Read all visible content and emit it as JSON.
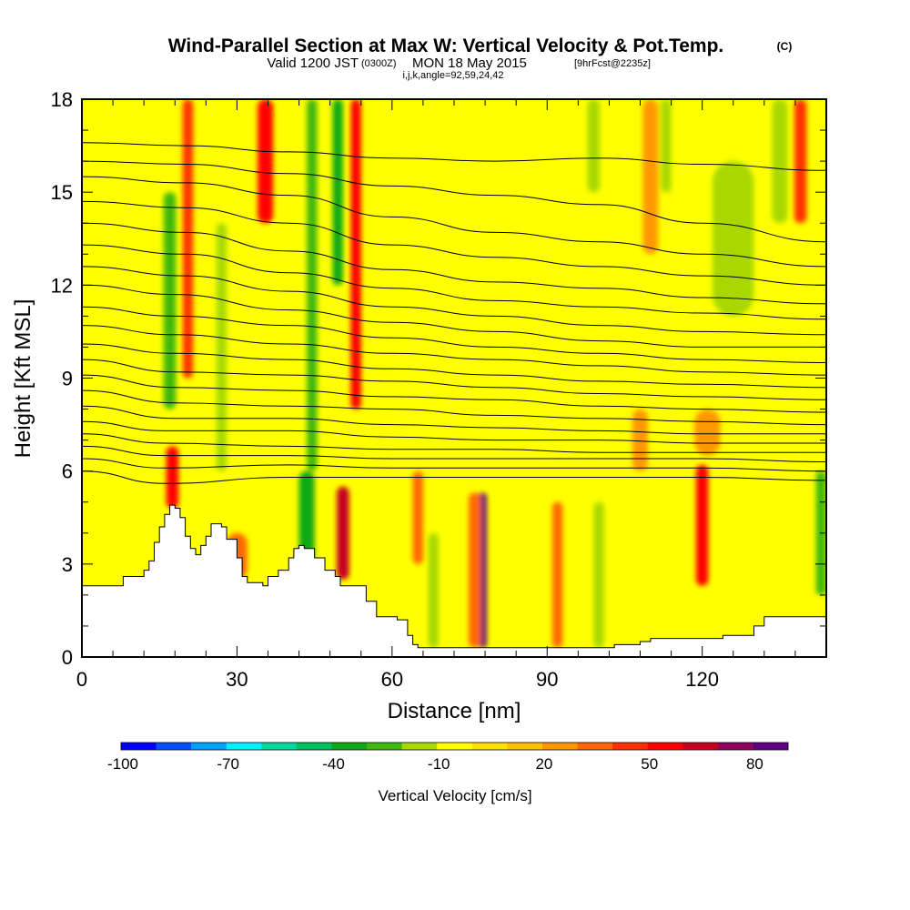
{
  "chart_data": {
    "type": "heatmap",
    "title": "Wind-Parallel Section at Max W: Vertical Velocity & Pot.Temp.",
    "title_mark": "(C)",
    "subtitle_main": "Valid 1200 JST",
    "subtitle_utc": "(0300Z)",
    "subtitle_date": "MON 18 May 2015",
    "subtitle_fcst": "[9hrFcst@2235z]",
    "subtitle_grid": "i,j,k,angle=92,59,24,42",
    "xlabel": "Distance [nm]",
    "ylabel": "Height [Kft MSL]",
    "xlim": [
      0,
      144
    ],
    "ylim": [
      0,
      18
    ],
    "x_ticks": [
      "0",
      "30",
      "60",
      "90",
      "120"
    ],
    "x_tick_values": [
      0,
      30,
      60,
      90,
      120
    ],
    "y_ticks": [
      "0",
      "3",
      "6",
      "9",
      "12",
      "15",
      "18"
    ],
    "y_tick_values": [
      0,
      3,
      6,
      9,
      12,
      15,
      18
    ],
    "colorbar": {
      "label": "Vertical Velocity [cm/s]",
      "bounds": [
        -100,
        90
      ],
      "step": 10,
      "tick_labels": [
        "-100",
        "-70",
        "-40",
        "-10",
        "20",
        "50",
        "80"
      ],
      "tick_values": [
        -100,
        -70,
        -40,
        -10,
        20,
        50,
        80
      ],
      "colors": [
        "#0000ff",
        "#0050ff",
        "#00a0ff",
        "#00f0ff",
        "#00d8a0",
        "#00c060",
        "#10a818",
        "#40b810",
        "#a8d800",
        "#ffff00",
        "#ffe000",
        "#ffc000",
        "#ff9800",
        "#ff6800",
        "#ff3000",
        "#ff0000",
        "#c80020",
        "#900060",
        "#600080"
      ]
    },
    "terrain_kft": [
      [
        0,
        2.3
      ],
      [
        6,
        2.3
      ],
      [
        8,
        2.6
      ],
      [
        12,
        2.8
      ],
      [
        13,
        3.1
      ],
      [
        14,
        3.7
      ],
      [
        15,
        4.2
      ],
      [
        16,
        4.6
      ],
      [
        17,
        4.9
      ],
      [
        18,
        4.8
      ],
      [
        19,
        4.5
      ],
      [
        20,
        3.9
      ],
      [
        21,
        3.5
      ],
      [
        22,
        3.3
      ],
      [
        23,
        3.6
      ],
      [
        24,
        3.9
      ],
      [
        25,
        4.3
      ],
      [
        27,
        4.2
      ],
      [
        28,
        3.8
      ],
      [
        30,
        3.2
      ],
      [
        31,
        2.6
      ],
      [
        32,
        2.4
      ],
      [
        35,
        2.3
      ],
      [
        36,
        2.6
      ],
      [
        38,
        2.8
      ],
      [
        40,
        3.2
      ],
      [
        41,
        3.5
      ],
      [
        42,
        3.6
      ],
      [
        43,
        3.5
      ],
      [
        45,
        3.2
      ],
      [
        47,
        2.8
      ],
      [
        49,
        2.6
      ],
      [
        50,
        2.3
      ],
      [
        53,
        2.3
      ],
      [
        55,
        1.8
      ],
      [
        57,
        1.3
      ],
      [
        59,
        1.3
      ],
      [
        61,
        1.2
      ],
      [
        63,
        0.7
      ],
      [
        64,
        0.4
      ],
      [
        65,
        0.3
      ],
      [
        70,
        0.3
      ],
      [
        80,
        0.3
      ],
      [
        100,
        0.3
      ],
      [
        103,
        0.4
      ],
      [
        108,
        0.5
      ],
      [
        110,
        0.6
      ],
      [
        115,
        0.6
      ],
      [
        124,
        0.7
      ],
      [
        130,
        1.0
      ],
      [
        132,
        1.3
      ],
      [
        144,
        1.3
      ]
    ],
    "potential_temperature_contours": [
      {
        "label": "",
        "points": [
          [
            0,
            16.6
          ],
          [
            20,
            16.5
          ],
          [
            40,
            16.3
          ],
          [
            60,
            16.1
          ],
          [
            80,
            16.0
          ],
          [
            100,
            16.1
          ],
          [
            120,
            15.9
          ],
          [
            144,
            15.7
          ]
        ]
      },
      {
        "label": "",
        "points": [
          [
            0,
            16.0
          ],
          [
            20,
            15.9
          ],
          [
            40,
            15.6
          ],
          [
            60,
            15.2
          ],
          [
            80,
            14.9
          ],
          [
            100,
            14.6
          ],
          [
            120,
            14.0
          ],
          [
            144,
            13.4
          ]
        ]
      },
      {
        "label": "",
        "points": [
          [
            0,
            15.5
          ],
          [
            20,
            15.3
          ],
          [
            40,
            14.9
          ],
          [
            60,
            14.2
          ],
          [
            80,
            13.7
          ],
          [
            100,
            13.4
          ],
          [
            120,
            13.0
          ],
          [
            144,
            12.6
          ]
        ]
      },
      {
        "label": "",
        "points": [
          [
            0,
            14.7
          ],
          [
            20,
            14.5
          ],
          [
            40,
            14.0
          ],
          [
            60,
            13.3
          ],
          [
            80,
            12.9
          ],
          [
            100,
            12.6
          ],
          [
            120,
            12.3
          ],
          [
            144,
            12.0
          ]
        ]
      },
      {
        "label": "",
        "points": [
          [
            0,
            14.0
          ],
          [
            20,
            13.7
          ],
          [
            40,
            13.1
          ],
          [
            60,
            12.5
          ],
          [
            80,
            12.1
          ],
          [
            100,
            11.9
          ],
          [
            120,
            11.6
          ],
          [
            144,
            11.4
          ]
        ]
      },
      {
        "label": "",
        "points": [
          [
            0,
            13.3
          ],
          [
            20,
            13.0
          ],
          [
            40,
            12.4
          ],
          [
            60,
            11.9
          ],
          [
            80,
            11.5
          ],
          [
            100,
            11.3
          ],
          [
            120,
            11.1
          ],
          [
            144,
            10.9
          ]
        ]
      },
      {
        "label": "",
        "points": [
          [
            0,
            12.6
          ],
          [
            20,
            12.3
          ],
          [
            40,
            11.8
          ],
          [
            60,
            11.3
          ],
          [
            80,
            11.0
          ],
          [
            100,
            10.7
          ],
          [
            120,
            10.5
          ],
          [
            144,
            10.4
          ]
        ]
      },
      {
        "label": "",
        "points": [
          [
            0,
            12.0
          ],
          [
            18,
            11.7
          ],
          [
            40,
            11.2
          ],
          [
            60,
            10.8
          ],
          [
            80,
            10.5
          ],
          [
            100,
            10.2
          ],
          [
            120,
            10.0
          ],
          [
            144,
            10.0
          ]
        ]
      },
      {
        "label": "",
        "points": [
          [
            0,
            11.3
          ],
          [
            18,
            11.0
          ],
          [
            40,
            10.7
          ],
          [
            60,
            10.3
          ],
          [
            80,
            10.0
          ],
          [
            100,
            9.8
          ],
          [
            120,
            9.6
          ],
          [
            144,
            9.5
          ]
        ]
      },
      {
        "label": "",
        "points": [
          [
            0,
            10.7
          ],
          [
            18,
            10.4
          ],
          [
            40,
            10.1
          ],
          [
            60,
            9.8
          ],
          [
            80,
            9.6
          ],
          [
            100,
            9.4
          ],
          [
            120,
            9.2
          ],
          [
            144,
            9.1
          ]
        ]
      },
      {
        "label": "",
        "points": [
          [
            0,
            10.1
          ],
          [
            18,
            9.8
          ],
          [
            40,
            9.6
          ],
          [
            60,
            9.3
          ],
          [
            80,
            9.1
          ],
          [
            100,
            8.9
          ],
          [
            120,
            8.8
          ],
          [
            144,
            8.7
          ]
        ]
      },
      {
        "label": "",
        "points": [
          [
            0,
            9.6
          ],
          [
            18,
            9.2
          ],
          [
            40,
            9.1
          ],
          [
            60,
            8.9
          ],
          [
            80,
            8.7
          ],
          [
            100,
            8.5
          ],
          [
            120,
            8.4
          ],
          [
            144,
            8.3
          ]
        ]
      },
      {
        "label": "",
        "points": [
          [
            0,
            9.1
          ],
          [
            18,
            8.7
          ],
          [
            40,
            8.6
          ],
          [
            60,
            8.4
          ],
          [
            80,
            8.3
          ],
          [
            100,
            8.1
          ],
          [
            120,
            8.0
          ],
          [
            144,
            7.9
          ]
        ]
      },
      {
        "label": "",
        "points": [
          [
            0,
            8.6
          ],
          [
            18,
            8.2
          ],
          [
            40,
            8.1
          ],
          [
            60,
            8.0
          ],
          [
            80,
            7.8
          ],
          [
            100,
            7.7
          ],
          [
            120,
            7.6
          ],
          [
            144,
            7.5
          ]
        ]
      },
      {
        "label": "",
        "points": [
          [
            0,
            8.1
          ],
          [
            18,
            7.7
          ],
          [
            40,
            7.7
          ],
          [
            60,
            7.5
          ],
          [
            80,
            7.4
          ],
          [
            100,
            7.3
          ],
          [
            120,
            7.2
          ],
          [
            144,
            7.2
          ]
        ]
      },
      {
        "label": "",
        "points": [
          [
            0,
            7.6
          ],
          [
            16,
            7.3
          ],
          [
            40,
            7.3
          ],
          [
            60,
            7.1
          ],
          [
            80,
            7.0
          ],
          [
            100,
            7.0
          ],
          [
            120,
            6.9
          ],
          [
            144,
            6.9
          ]
        ]
      },
      {
        "label": "",
        "points": [
          [
            0,
            7.2
          ],
          [
            16,
            6.9
          ],
          [
            40,
            6.8
          ],
          [
            60,
            6.7
          ],
          [
            80,
            6.7
          ],
          [
            100,
            6.6
          ],
          [
            120,
            6.6
          ],
          [
            144,
            6.6
          ]
        ]
      },
      {
        "label": "",
        "points": [
          [
            0,
            6.8
          ],
          [
            16,
            6.5
          ],
          [
            40,
            6.5
          ],
          [
            60,
            6.4
          ],
          [
            80,
            6.4
          ],
          [
            100,
            6.4
          ],
          [
            120,
            6.4
          ],
          [
            144,
            6.3
          ]
        ]
      },
      {
        "label": "",
        "points": [
          [
            0,
            6.4
          ],
          [
            16,
            6.1
          ],
          [
            40,
            6.2
          ],
          [
            60,
            6.1
          ],
          [
            80,
            6.1
          ],
          [
            100,
            6.1
          ],
          [
            120,
            6.1
          ],
          [
            144,
            6.0
          ]
        ]
      },
      {
        "label": "",
        "points": [
          [
            0,
            6.0
          ],
          [
            16,
            5.6
          ],
          [
            40,
            5.8
          ],
          [
            60,
            5.8
          ],
          [
            80,
            5.8
          ],
          [
            100,
            5.8
          ],
          [
            120,
            5.8
          ],
          [
            144,
            5.7
          ]
        ]
      }
    ],
    "vertical_velocity_features": [
      {
        "x": 17.5,
        "x_half_width": 1.2,
        "y_bottom": 4.8,
        "y_top": 6.8,
        "value": 55
      },
      {
        "x": 20.5,
        "x_half_width": 1.0,
        "y_bottom": 9.0,
        "y_top": 18.0,
        "value": 45
      },
      {
        "x": 17.0,
        "x_half_width": 1.2,
        "y_bottom": 8.0,
        "y_top": 15.0,
        "value": -30
      },
      {
        "x": 27.0,
        "x_half_width": 1.0,
        "y_bottom": 6.0,
        "y_top": 14.0,
        "value": -20
      },
      {
        "x": 35.5,
        "x_half_width": 1.5,
        "y_bottom": 14.0,
        "y_top": 18.0,
        "value": 55
      },
      {
        "x": 30.0,
        "x_half_width": 2.0,
        "y_bottom": 2.5,
        "y_top": 4.0,
        "value": 30
      },
      {
        "x": 43.5,
        "x_half_width": 1.5,
        "y_bottom": 3.0,
        "y_top": 6.0,
        "value": -40
      },
      {
        "x": 44.5,
        "x_half_width": 1.0,
        "y_bottom": 6.0,
        "y_top": 18.0,
        "value": -25
      },
      {
        "x": 50.5,
        "x_half_width": 1.2,
        "y_bottom": 2.5,
        "y_top": 5.5,
        "value": 60
      },
      {
        "x": 53.0,
        "x_half_width": 1.0,
        "y_bottom": 8.0,
        "y_top": 18.0,
        "value": 55
      },
      {
        "x": 49.5,
        "x_half_width": 1.0,
        "y_bottom": 12.0,
        "y_top": 18.0,
        "value": -40
      },
      {
        "x": 77.5,
        "x_half_width": 0.8,
        "y_bottom": 0.3,
        "y_top": 5.3,
        "value": 85
      },
      {
        "x": 76.0,
        "x_half_width": 1.2,
        "y_bottom": 0.3,
        "y_top": 5.3,
        "value": 35
      },
      {
        "x": 120.0,
        "x_half_width": 1.2,
        "y_bottom": 2.3,
        "y_top": 6.2,
        "value": 55
      },
      {
        "x": 121.0,
        "x_half_width": 2.5,
        "y_bottom": 6.5,
        "y_top": 8.0,
        "value": 20
      },
      {
        "x": 126.0,
        "x_half_width": 4.0,
        "y_bottom": 11.0,
        "y_top": 16.0,
        "value": -20
      },
      {
        "x": 139.0,
        "x_half_width": 1.2,
        "y_bottom": 14.0,
        "y_top": 18.0,
        "value": 40
      },
      {
        "x": 135.0,
        "x_half_width": 1.5,
        "y_bottom": 14.0,
        "y_top": 18.0,
        "value": -15
      },
      {
        "x": 143.0,
        "x_half_width": 1.0,
        "y_bottom": 2.0,
        "y_top": 6.0,
        "value": -25
      },
      {
        "x": 99.0,
        "x_half_width": 1.2,
        "y_bottom": 15.0,
        "y_top": 18.0,
        "value": -15
      },
      {
        "x": 113.0,
        "x_half_width": 1.0,
        "y_bottom": 15.0,
        "y_top": 18.0,
        "value": -15
      },
      {
        "x": 110.0,
        "x_half_width": 1.5,
        "y_bottom": 13.0,
        "y_top": 18.0,
        "value": 25
      },
      {
        "x": 65.0,
        "x_half_width": 1.0,
        "y_bottom": 3.0,
        "y_top": 6.0,
        "value": 35
      },
      {
        "x": 68.0,
        "x_half_width": 1.0,
        "y_bottom": 0.3,
        "y_top": 4.0,
        "value": -15
      },
      {
        "x": 92.0,
        "x_half_width": 1.0,
        "y_bottom": 0.3,
        "y_top": 5.0,
        "value": 30
      },
      {
        "x": 100.0,
        "x_half_width": 1.0,
        "y_bottom": 0.3,
        "y_top": 5.0,
        "value": -15
      },
      {
        "x": 108.0,
        "x_half_width": 1.5,
        "y_bottom": 6.0,
        "y_top": 8.0,
        "value": 20
      }
    ]
  }
}
